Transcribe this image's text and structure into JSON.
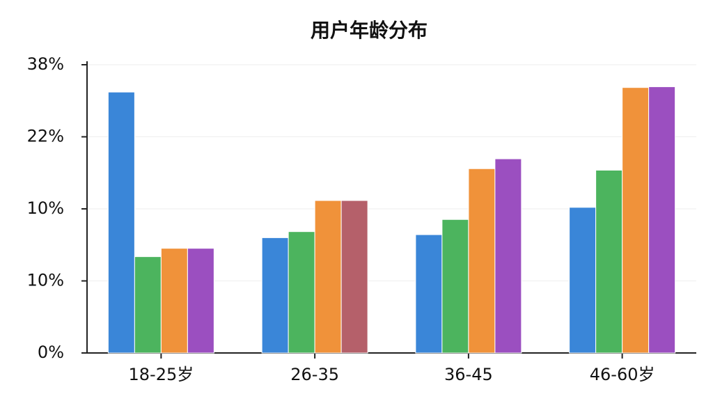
{
  "chart_data": {
    "type": "bar",
    "title": "用户年龄分布",
    "categories": [
      "18-25岁",
      "26-35",
      "36-45",
      "46-60岁"
    ],
    "series": [
      {
        "color": "#3a86d8",
        "values": [
          34.4,
          15.2,
          15.6,
          19.2
        ]
      },
      {
        "color": "#4cb45e",
        "values": [
          12.7,
          16.0,
          17.6,
          24.1
        ]
      },
      {
        "color": "#f0923a",
        "values": [
          13.8,
          20.1,
          24.3,
          35.0
        ]
      },
      {
        "color": "#9b4fc0",
        "colors": [
          "#9b4fc0",
          "#b5606a",
          "#9b4fc0",
          "#9b4fc0"
        ],
        "values": [
          13.8,
          20.1,
          25.6,
          35.1
        ]
      }
    ],
    "ylim": [
      0,
      38
    ],
    "ytick_labels": [
      "0%",
      "10%",
      "10%",
      "22%",
      "38%"
    ],
    "grid": true
  }
}
